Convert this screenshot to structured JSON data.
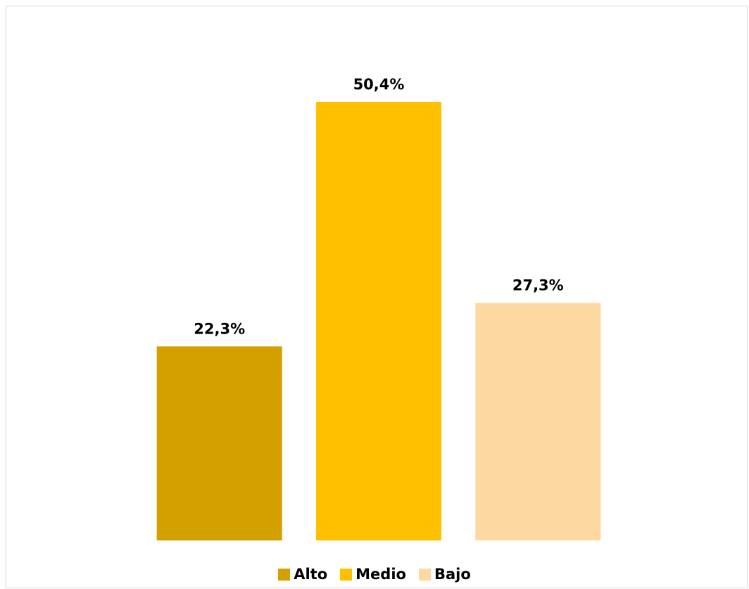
{
  "chart_data": {
    "type": "bar",
    "categories": [
      "Alto",
      "Medio",
      "Bajo"
    ],
    "values": [
      22.3,
      50.4,
      27.3
    ],
    "value_labels": [
      "22,3%",
      "50,4%",
      "27,3%"
    ],
    "colors": [
      "#D4A000",
      "#FFC000",
      "#FDD8A0"
    ],
    "title": "",
    "xlabel": "",
    "ylabel": "",
    "ylim": [
      0,
      50.4
    ],
    "grid": false,
    "legend_position": "bottom"
  },
  "legend": {
    "items": [
      {
        "label": "Alto",
        "color": "#D4A000"
      },
      {
        "label": "Medio",
        "color": "#FFC000"
      },
      {
        "label": "Bajo",
        "color": "#FDD8A0"
      }
    ]
  }
}
